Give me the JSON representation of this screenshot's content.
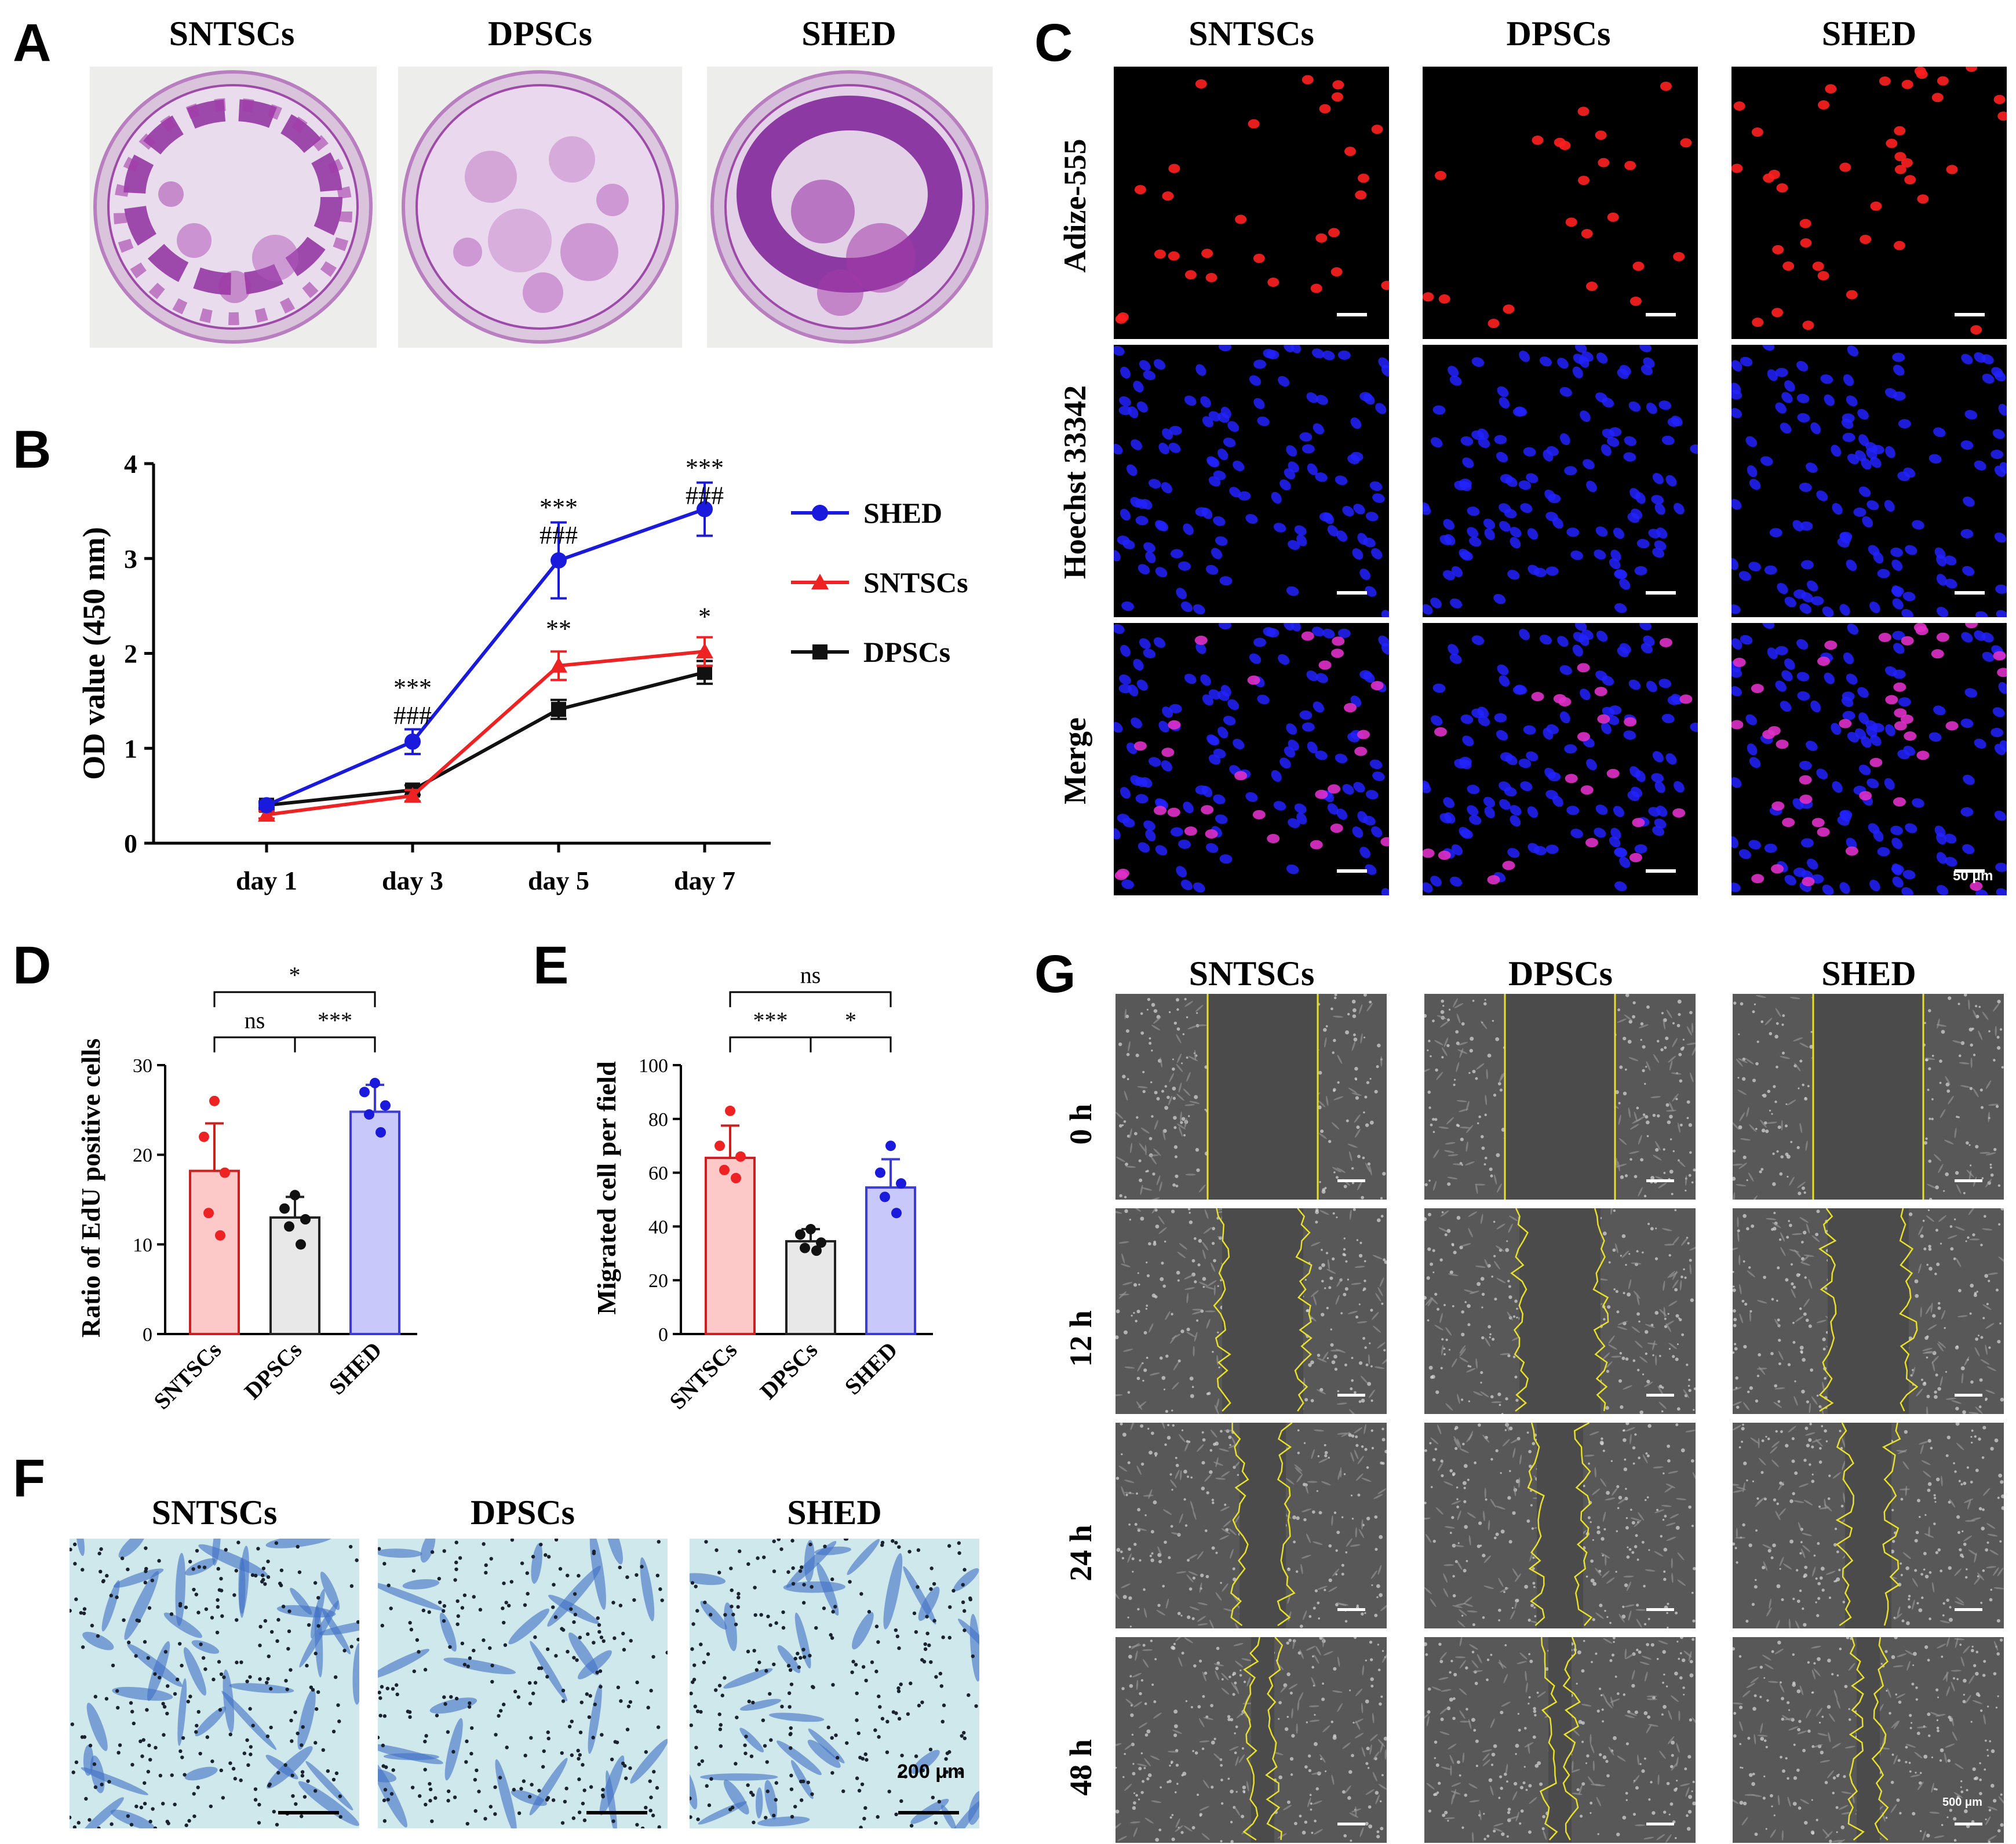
{
  "panel_labels": {
    "A": "A",
    "B": "B",
    "C": "C",
    "D": "D",
    "E": "E",
    "F": "F",
    "G": "G"
  },
  "groups": [
    "SNTSCs",
    "DPSCs",
    "SHED"
  ],
  "colors": {
    "SHED": "#1a1adc",
    "SNTSCs": "#ee2222",
    "DPSCs": "#111111",
    "crystal_violet": "#a43aa8",
    "edu_red": "#ff2020",
    "hoechst_blue": "#2222ff",
    "wound_line": "#e8e02a",
    "transwell_bg": "#cfe8ec"
  },
  "panelA": {
    "titles": [
      "SNTSCs",
      "DPSCs",
      "SHED"
    ]
  },
  "panelC": {
    "col_titles": [
      "SNTSCs",
      "DPSCs",
      "SHED"
    ],
    "row_titles": [
      "Adize-555",
      "Hoechst 33342",
      "Merge"
    ],
    "scale_label": "50 μm"
  },
  "panelF": {
    "titles": [
      "SNTSCs",
      "DPSCs",
      "SHED"
    ],
    "scale_label": "200 μm"
  },
  "panelG": {
    "col_titles": [
      "SNTSCs",
      "DPSCs",
      "SHED"
    ],
    "row_titles": [
      "0 h",
      "12 h",
      "24 h",
      "48 h"
    ],
    "scale_label": "500 μm"
  },
  "chart_data": [
    {
      "id": "B",
      "type": "line",
      "title": "",
      "xlabel": "",
      "ylabel": "OD value (450 nm)",
      "categories": [
        "day 1",
        "day 3",
        "day 5",
        "day 7"
      ],
      "ylim": [
        0,
        4
      ],
      "yticks": [
        "0",
        "1",
        "2",
        "3",
        "4"
      ],
      "series": [
        {
          "name": "SHED",
          "marker": "circle",
          "color": "#1a1adc",
          "values": [
            0.4,
            1.07,
            2.98,
            3.52
          ],
          "errors": [
            0.04,
            0.13,
            0.4,
            0.28
          ]
        },
        {
          "name": "SNTSCs",
          "marker": "triangle",
          "color": "#ee2222",
          "values": [
            0.3,
            0.5,
            1.87,
            2.02
          ],
          "errors": [
            0.04,
            0.06,
            0.15,
            0.15
          ]
        },
        {
          "name": "DPSCs",
          "marker": "square",
          "color": "#111111",
          "values": [
            0.4,
            0.56,
            1.41,
            1.8
          ],
          "errors": [
            0.03,
            0.05,
            0.1,
            0.12
          ]
        }
      ],
      "annotations": [
        {
          "x": "day 3",
          "lines": [
            "***",
            "###"
          ]
        },
        {
          "x": "day 5",
          "lines": [
            "***",
            "###"
          ]
        },
        {
          "x": "day 5",
          "lines": [
            "**"
          ]
        },
        {
          "x": "day 7",
          "lines": [
            "***",
            "###"
          ]
        },
        {
          "x": "day 7",
          "lines": [
            "*"
          ]
        }
      ],
      "legend": [
        "SHED",
        "SNTSCs",
        "DPSCs"
      ]
    },
    {
      "id": "D",
      "type": "bar",
      "title": "",
      "xlabel": "",
      "ylabel": "Ratio of EdU positive cells",
      "categories": [
        "SNTSCs",
        "DPSCs",
        "SHED"
      ],
      "values": [
        18.2,
        13.0,
        24.8
      ],
      "errors": [
        5.3,
        2.3,
        3.0
      ],
      "points": [
        [
          26.0,
          22.0,
          18.0,
          13.5,
          11.0
        ],
        [
          15.5,
          14.0,
          12.8,
          12.0,
          10.0
        ],
        [
          28.0,
          27.0,
          25.5,
          24.5,
          22.5
        ]
      ],
      "ylim": [
        0,
        30
      ],
      "yticks": [
        "0",
        "10",
        "20",
        "30"
      ],
      "significance": [
        {
          "from": 0,
          "to": 2,
          "label": "*"
        },
        {
          "from": 0,
          "to": 1,
          "label": "ns"
        },
        {
          "from": 1,
          "to": 2,
          "label": "***"
        }
      ]
    },
    {
      "id": "E",
      "type": "bar",
      "title": "",
      "xlabel": "",
      "ylabel": "Migrated cell per field",
      "categories": [
        "SNTSCs",
        "DPSCs",
        "SHED"
      ],
      "values": [
        65.5,
        34.5,
        54.5
      ],
      "errors": [
        12.0,
        4.5,
        10.5
      ],
      "points": [
        [
          83.0,
          70.0,
          66.0,
          61.0,
          58.0
        ],
        [
          39.0,
          37.0,
          34.0,
          32.0,
          31.0
        ],
        [
          70.0,
          60.0,
          56.0,
          51.0,
          45.0
        ]
      ],
      "ylim": [
        0,
        100
      ],
      "yticks": [
        "0",
        "20",
        "40",
        "60",
        "80",
        "100"
      ],
      "significance": [
        {
          "from": 0,
          "to": 2,
          "label": "ns"
        },
        {
          "from": 0,
          "to": 1,
          "label": "***"
        },
        {
          "from": 1,
          "to": 2,
          "label": "*"
        }
      ]
    }
  ]
}
